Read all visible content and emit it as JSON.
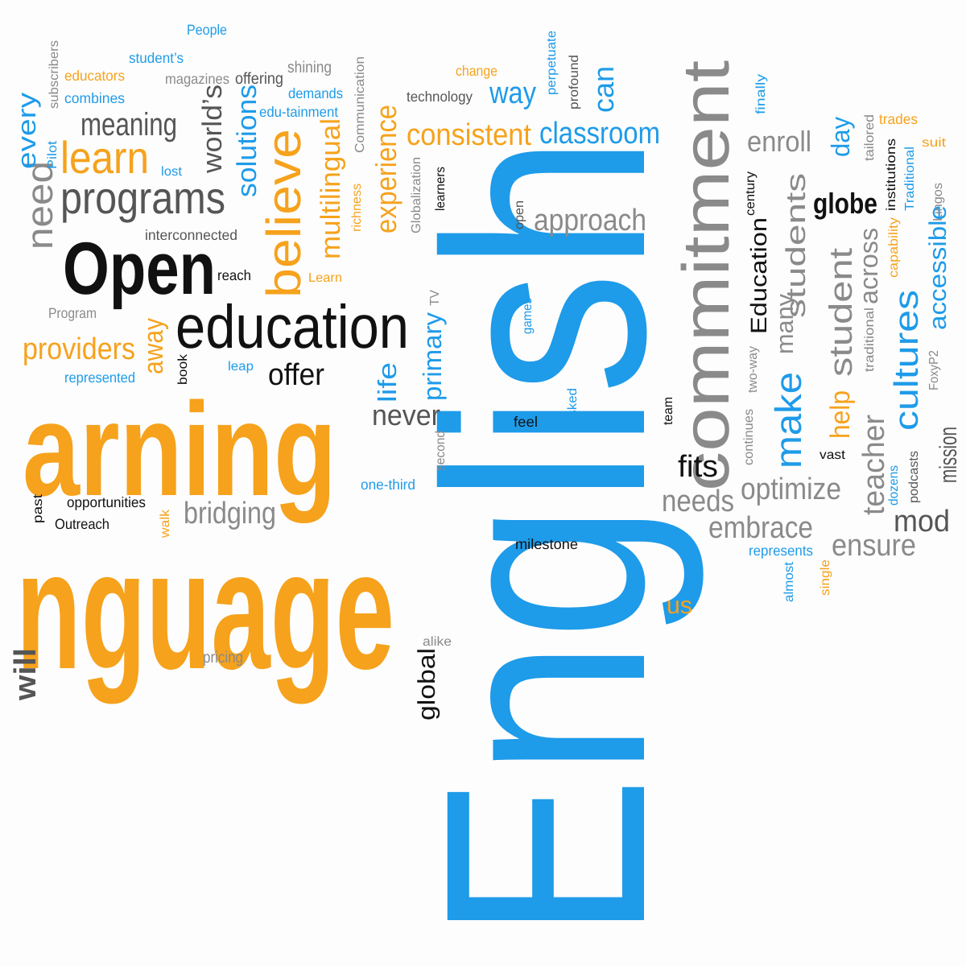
{
  "title": "",
  "palette": {
    "blue": "#1e9be9",
    "orange": "#f6a21c",
    "black": "#111111",
    "gray": "#8a8a8a",
    "dark_gray": "#555555",
    "background": "#fdfdfd"
  },
  "words": [
    {
      "id": "english",
      "text": "English",
      "color": "blue"
    },
    {
      "id": "language",
      "text": "nguage",
      "color": "orange"
    },
    {
      "id": "learning",
      "text": "arning",
      "color": "orange"
    },
    {
      "id": "open",
      "text": "Open",
      "color": "black"
    },
    {
      "id": "education",
      "text": "education",
      "color": "black"
    },
    {
      "id": "commitment",
      "text": "commitment",
      "color": "gray"
    },
    {
      "id": "programs",
      "text": "programs",
      "color": "dark_gray"
    },
    {
      "id": "believe",
      "text": "believe",
      "color": "orange"
    },
    {
      "id": "learn",
      "text": "learn",
      "color": "orange"
    },
    {
      "id": "meaning",
      "text": "meaning",
      "color": "dark_gray"
    },
    {
      "id": "need",
      "text": "need",
      "color": "gray"
    },
    {
      "id": "every",
      "text": "every",
      "color": "blue"
    },
    {
      "id": "providers",
      "text": "providers",
      "color": "orange"
    },
    {
      "id": "offer",
      "text": "offer",
      "color": "black"
    },
    {
      "id": "bridging",
      "text": "bridging",
      "color": "gray"
    },
    {
      "id": "consistent",
      "text": "consistent",
      "color": "orange"
    },
    {
      "id": "classroom",
      "text": "classroom",
      "color": "blue"
    },
    {
      "id": "way",
      "text": "way",
      "color": "blue"
    },
    {
      "id": "can",
      "text": "can",
      "color": "blue"
    },
    {
      "id": "experience",
      "text": "experience",
      "color": "orange"
    },
    {
      "id": "multilingual",
      "text": "multilingual",
      "color": "orange"
    },
    {
      "id": "solutions",
      "text": "solutions",
      "color": "blue"
    },
    {
      "id": "worlds",
      "text": "world’s",
      "color": "dark_gray"
    },
    {
      "id": "approach",
      "text": "approach",
      "color": "gray"
    },
    {
      "id": "enroll",
      "text": "enroll",
      "color": "gray"
    },
    {
      "id": "day",
      "text": "day",
      "color": "blue"
    },
    {
      "id": "globe",
      "text": "globe",
      "color": "black"
    },
    {
      "id": "education2",
      "text": "Education",
      "color": "black"
    },
    {
      "id": "students",
      "text": "students",
      "color": "gray"
    },
    {
      "id": "many",
      "text": "many",
      "color": "gray"
    },
    {
      "id": "student",
      "text": "student",
      "color": "gray"
    },
    {
      "id": "across",
      "text": "across",
      "color": "gray"
    },
    {
      "id": "cultures",
      "text": "cultures",
      "color": "blue"
    },
    {
      "id": "accessible",
      "text": "accessible",
      "color": "blue"
    },
    {
      "id": "make",
      "text": "make",
      "color": "blue"
    },
    {
      "id": "help",
      "text": "help",
      "color": "orange"
    },
    {
      "id": "teacher",
      "text": "teacher",
      "color": "gray"
    },
    {
      "id": "mission",
      "text": "mission",
      "color": "dark_gray"
    },
    {
      "id": "mod",
      "text": "mod",
      "color": "dark_gray"
    },
    {
      "id": "ensure",
      "text": "ensure",
      "color": "gray"
    },
    {
      "id": "embrace",
      "text": "embrace",
      "color": "gray"
    },
    {
      "id": "optimize",
      "text": "optimize",
      "color": "gray"
    },
    {
      "id": "needs",
      "text": "needs",
      "color": "gray"
    },
    {
      "id": "fits",
      "text": "fits",
      "color": "black"
    },
    {
      "id": "never",
      "text": "never",
      "color": "dark_gray"
    },
    {
      "id": "life",
      "text": "life",
      "color": "blue"
    },
    {
      "id": "primary",
      "text": "primary",
      "color": "blue"
    },
    {
      "id": "away",
      "text": "away",
      "color": "orange"
    },
    {
      "id": "global",
      "text": "global",
      "color": "black"
    },
    {
      "id": "us",
      "text": "us",
      "color": "orange"
    },
    {
      "id": "people",
      "text": "People",
      "color": "blue"
    },
    {
      "id": "students_poss",
      "text": "student’s",
      "color": "blue"
    },
    {
      "id": "educators",
      "text": "educators",
      "color": "orange"
    },
    {
      "id": "combines",
      "text": "combines",
      "color": "blue"
    },
    {
      "id": "magazines",
      "text": "magazines",
      "color": "gray"
    },
    {
      "id": "offering",
      "text": "offering",
      "color": "dark_gray"
    },
    {
      "id": "shining",
      "text": "shining",
      "color": "gray"
    },
    {
      "id": "demands",
      "text": "demands",
      "color": "blue"
    },
    {
      "id": "edutainment",
      "text": "edu-tainment",
      "color": "blue"
    },
    {
      "id": "subscribers",
      "text": "subscribers",
      "color": "gray"
    },
    {
      "id": "communication",
      "text": "Communication",
      "color": "gray"
    },
    {
      "id": "change",
      "text": "change",
      "color": "orange"
    },
    {
      "id": "technology",
      "text": "technology",
      "color": "dark_gray"
    },
    {
      "id": "perpetuate",
      "text": "perpetuate",
      "color": "blue"
    },
    {
      "id": "profound",
      "text": "profound",
      "color": "dark_gray"
    },
    {
      "id": "pilot",
      "text": "Pilot",
      "color": "blue"
    },
    {
      "id": "lost",
      "text": "lost",
      "color": "blue"
    },
    {
      "id": "interconnected",
      "text": "interconnected",
      "color": "dark_gray"
    },
    {
      "id": "reach",
      "text": "reach",
      "color": "black"
    },
    {
      "id": "learn2",
      "text": "Learn",
      "color": "orange"
    },
    {
      "id": "program",
      "text": "Program",
      "color": "gray"
    },
    {
      "id": "represented",
      "text": "represented",
      "color": "blue"
    },
    {
      "id": "book",
      "text": "book",
      "color": "black"
    },
    {
      "id": "leap",
      "text": "leap",
      "color": "blue"
    },
    {
      "id": "richness",
      "text": "richness",
      "color": "orange"
    },
    {
      "id": "globalization",
      "text": "Globalization",
      "color": "gray"
    },
    {
      "id": "learners",
      "text": "learners",
      "color": "black"
    },
    {
      "id": "open2",
      "text": "open",
      "color": "dark_gray"
    },
    {
      "id": "tv",
      "text": "TV",
      "color": "gray"
    },
    {
      "id": "games",
      "text": "games",
      "color": "blue"
    },
    {
      "id": "asked",
      "text": "asked",
      "color": "blue"
    },
    {
      "id": "feel",
      "text": "feel",
      "color": "black"
    },
    {
      "id": "second",
      "text": "second",
      "color": "gray"
    },
    {
      "id": "onethird",
      "text": "one-third",
      "color": "blue"
    },
    {
      "id": "milestone",
      "text": "milestone",
      "color": "black"
    },
    {
      "id": "alike",
      "text": "alike",
      "color": "gray"
    },
    {
      "id": "pricing",
      "text": "pricing",
      "color": "gray"
    },
    {
      "id": "past",
      "text": "past",
      "color": "black"
    },
    {
      "id": "opportunities",
      "text": "opportunities",
      "color": "black"
    },
    {
      "id": "outreach",
      "text": "Outreach",
      "color": "black"
    },
    {
      "id": "walk",
      "text": "walk",
      "color": "orange"
    },
    {
      "id": "finally",
      "text": "finally",
      "color": "blue"
    },
    {
      "id": "century",
      "text": "century",
      "color": "black"
    },
    {
      "id": "tailored",
      "text": "tailored",
      "color": "gray"
    },
    {
      "id": "trades",
      "text": "trades",
      "color": "orange"
    },
    {
      "id": "institutions",
      "text": "institutions",
      "color": "black"
    },
    {
      "id": "traditional_cap",
      "text": "Traditional",
      "color": "blue"
    },
    {
      "id": "suit",
      "text": "suit",
      "color": "orange"
    },
    {
      "id": "lingos",
      "text": "Lingos",
      "color": "gray"
    },
    {
      "id": "capability",
      "text": "capability",
      "color": "orange"
    },
    {
      "id": "traditional",
      "text": "traditional",
      "color": "gray"
    },
    {
      "id": "twoway",
      "text": "two-way",
      "color": "gray"
    },
    {
      "id": "foxyp2",
      "text": "FoxyP2",
      "color": "gray"
    },
    {
      "id": "continues",
      "text": "continues",
      "color": "gray"
    },
    {
      "id": "team",
      "text": "team",
      "color": "black"
    },
    {
      "id": "vast",
      "text": "vast",
      "color": "black"
    },
    {
      "id": "dozens",
      "text": "dozens",
      "color": "blue"
    },
    {
      "id": "podcasts",
      "text": "podcasts",
      "color": "dark_gray"
    },
    {
      "id": "represents",
      "text": "represents",
      "color": "blue"
    },
    {
      "id": "almost",
      "text": "almost",
      "color": "blue"
    },
    {
      "id": "single",
      "text": "single",
      "color": "orange"
    },
    {
      "id": "will",
      "text": "will",
      "color": "dark_gray"
    }
  ]
}
